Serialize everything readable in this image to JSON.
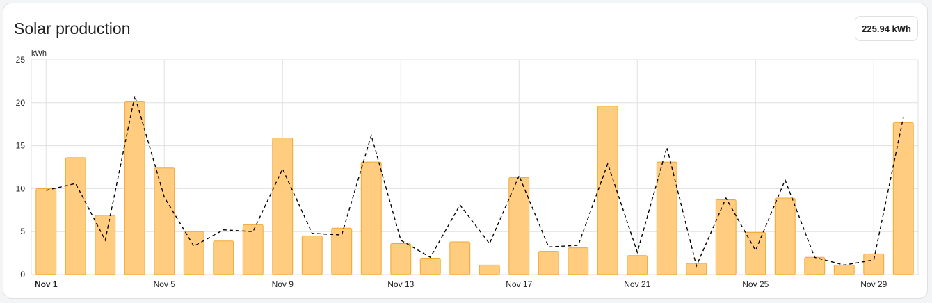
{
  "card": {
    "title": "Solar production",
    "total": "225.94 kWh"
  },
  "colors": {
    "bar_fill": "#ffcc80",
    "bar_stroke": "#f0a830",
    "forecast_line": "#000000",
    "grid": "#e0e0e0"
  },
  "chart_data": {
    "type": "bar",
    "ylabel": "kWh",
    "ylim": [
      0,
      25
    ],
    "yticks": [
      0,
      5,
      10,
      15,
      20,
      25
    ],
    "grid": true,
    "categories": [
      "Nov 1",
      "Nov 2",
      "Nov 3",
      "Nov 4",
      "Nov 5",
      "Nov 6",
      "Nov 7",
      "Nov 8",
      "Nov 9",
      "Nov 10",
      "Nov 11",
      "Nov 12",
      "Nov 13",
      "Nov 14",
      "Nov 15",
      "Nov 16",
      "Nov 17",
      "Nov 18",
      "Nov 19",
      "Nov 20",
      "Nov 21",
      "Nov 22",
      "Nov 23",
      "Nov 24",
      "Nov 25",
      "Nov 26",
      "Nov 27",
      "Nov 28",
      "Nov 29",
      "Nov 30"
    ],
    "xtick_labels": [
      "Nov 1",
      "Nov 5",
      "Nov 9",
      "Nov 13",
      "Nov 17",
      "Nov 21",
      "Nov 25",
      "Nov 29"
    ],
    "series": [
      {
        "kind": "bar",
        "values": [
          10.0,
          13.6,
          6.9,
          20.1,
          12.4,
          5.0,
          3.9,
          5.8,
          15.9,
          4.5,
          5.4,
          13.1,
          3.6,
          1.9,
          3.8,
          1.1,
          11.3,
          2.7,
          3.1,
          19.6,
          2.2,
          13.1,
          1.3,
          8.7,
          4.9,
          8.9,
          2.0,
          1.1,
          2.4,
          17.7
        ]
      },
      {
        "kind": "line-dashed",
        "values": [
          9.8,
          10.6,
          4.0,
          20.8,
          9.0,
          3.3,
          5.2,
          5.0,
          12.3,
          4.8,
          4.6,
          16.2,
          4.0,
          2.0,
          8.1,
          3.6,
          11.5,
          3.2,
          3.4,
          12.9,
          2.6,
          14.8,
          1.0,
          8.9,
          2.8,
          11.0,
          2.0,
          1.1,
          1.7,
          18.3
        ]
      }
    ]
  }
}
